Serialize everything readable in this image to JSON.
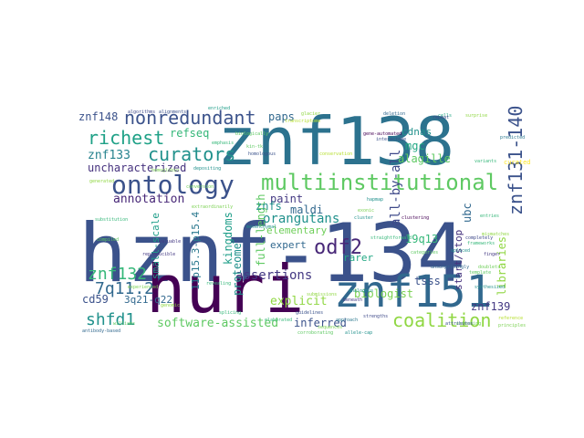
{
  "title": "",
  "words": [
    {
      "text": "hznf-134",
      "color": "#3b528b"
    },
    {
      "text": "znf138",
      "color": "#2c728e"
    },
    {
      "text": "huri",
      "color": "#440154"
    },
    {
      "text": "znf151",
      "color": "#31688e"
    },
    {
      "text": "ontology",
      "color": "#3b528b"
    },
    {
      "text": "multiinstitutional",
      "color": "#5ec962"
    },
    {
      "text": "znf131-140",
      "color": "#3b528b"
    },
    {
      "text": "nonredundant",
      "color": "#3b528b"
    },
    {
      "text": "curators",
      "color": "#21918c"
    },
    {
      "text": "richest",
      "color": "#1fa187"
    },
    {
      "text": "coalition",
      "color": "#90d743"
    },
    {
      "text": "znf132",
      "color": "#35b779"
    },
    {
      "text": "odf2",
      "color": "#482878"
    },
    {
      "text": "7q11.2",
      "color": "#31688e"
    },
    {
      "text": "shfd1",
      "color": "#21918c"
    },
    {
      "text": "software-assisted",
      "color": "#5ec962"
    },
    {
      "text": "assertions",
      "color": "#443983"
    },
    {
      "text": "orangutans",
      "color": "#21918c"
    },
    {
      "text": "annotation",
      "color": "#482878"
    },
    {
      "text": "uncharacterized",
      "color": "#46327e"
    },
    {
      "text": "znf133",
      "color": "#26828e"
    },
    {
      "text": "all-by-all",
      "color": "#3e4989"
    },
    {
      "text": "biologist",
      "color": "#7ad151"
    },
    {
      "text": "inferred",
      "color": "#3b528b"
    },
    {
      "text": "znf139",
      "color": "#443983"
    },
    {
      "text": "libraries",
      "color": "#90d743"
    },
    {
      "text": "explicit",
      "color": "#90d743"
    },
    {
      "text": "kingdoms",
      "color": "#1f9e89"
    },
    {
      "text": "full-length",
      "color": "#5ec962"
    },
    {
      "text": "proteome",
      "color": "#21918c"
    },
    {
      "text": "11p15.3-p15.4",
      "color": "#2a788e"
    },
    {
      "text": "start/stop",
      "color": "#46327e"
    },
    {
      "text": "curated",
      "color": "#fde725"
    },
    {
      "text": "paps",
      "color": "#31688e"
    },
    {
      "text": "refseq",
      "color": "#35b779"
    },
    {
      "text": "znf148",
      "color": "#3b528b"
    },
    {
      "text": "cdnas",
      "color": "#21918c"
    },
    {
      "text": "mgc",
      "color": "#22a884"
    },
    {
      "text": "alagille",
      "color": "#5ec962"
    },
    {
      "text": "paint",
      "color": "#443983"
    },
    {
      "text": "maldi",
      "color": "#31688e"
    },
    {
      "text": "znfs",
      "color": "#21918c"
    },
    {
      "text": "elementary",
      "color": "#6ece58"
    },
    {
      "text": "expert",
      "color": "#31688e"
    },
    {
      "text": "rarer",
      "color": "#22a884"
    },
    {
      "text": "tsss",
      "color": "#3b528b"
    },
    {
      "text": "19q13",
      "color": "#35b779"
    },
    {
      "text": "ubc",
      "color": "#31688e"
    },
    {
      "text": "cd59",
      "color": "#3b528b"
    },
    {
      "text": "3q21-q22",
      "color": "#31688e"
    },
    {
      "text": "small-scale",
      "color": "#1f9e89"
    },
    {
      "text": "transcriptome",
      "color": "#b5de2b"
    },
    {
      "text": "glacier",
      "color": "#90d743"
    },
    {
      "text": "emphasis",
      "color": "#35b779"
    },
    {
      "text": "biologically",
      "color": "#5ec962"
    },
    {
      "text": "hemoglobin",
      "color": "#7ad151"
    },
    {
      "text": "interactome",
      "color": "#3b528b"
    },
    {
      "text": "cells",
      "color": "#22a884"
    },
    {
      "text": "depositing",
      "color": "#21918c"
    },
    {
      "text": "conversion",
      "color": "#6ece58"
    },
    {
      "text": "variants",
      "color": "#35b779"
    },
    {
      "text": "predicted",
      "color": "#2a788e"
    },
    {
      "text": "extraordinarily",
      "color": "#7ad151"
    },
    {
      "text": "generated",
      "color": "#90d743"
    },
    {
      "text": "algorithms",
      "color": "#3e4989"
    },
    {
      "text": "enriched",
      "color": "#1f9e89"
    },
    {
      "text": "alignments",
      "color": "#3b528b"
    },
    {
      "text": "substitution",
      "color": "#35b779"
    },
    {
      "text": "valuable",
      "color": "#443983"
    },
    {
      "text": "kin-tk",
      "color": "#5ec962"
    },
    {
      "text": "cluster",
      "color": "#21918c"
    },
    {
      "text": "sequences",
      "color": "#7ad151"
    },
    {
      "text": "strengths",
      "color": "#3e4989"
    },
    {
      "text": "approach",
      "color": "#2a788e"
    },
    {
      "text": "clustering",
      "color": "#440154"
    },
    {
      "text": "genomic",
      "color": "#90d743"
    },
    {
      "text": "splicing",
      "color": "#35b779"
    },
    {
      "text": "guidelines",
      "color": "#3b528b"
    },
    {
      "text": "corroborating",
      "color": "#5ec962"
    },
    {
      "text": "allele-cap",
      "color": "#21918c"
    },
    {
      "text": "beneath",
      "color": "#443983"
    },
    {
      "text": "unsurprisingly",
      "color": "#31688e"
    },
    {
      "text": "extending",
      "color": "#6ece58"
    },
    {
      "text": "categories",
      "color": "#5ec962"
    },
    {
      "text": "straightforward",
      "color": "#35b779"
    },
    {
      "text": "surprise",
      "color": "#90d743"
    },
    {
      "text": "principles",
      "color": "#7ad151"
    },
    {
      "text": "reference",
      "color": "#b5de2b"
    },
    {
      "text": "attributes",
      "color": "#3b528b"
    },
    {
      "text": "synthesized",
      "color": "#21918c"
    },
    {
      "text": "finger",
      "color": "#443983"
    },
    {
      "text": "template",
      "color": "#5ec962"
    },
    {
      "text": "frameworks",
      "color": "#35b779"
    },
    {
      "text": "mismatches",
      "color": "#90d743"
    },
    {
      "text": "completely",
      "color": "#3e4989"
    },
    {
      "text": "doublets",
      "color": "#6ece58"
    },
    {
      "text": "spliced",
      "color": "#21918c"
    },
    {
      "text": "entries",
      "color": "#35b779"
    },
    {
      "text": "gene-automated",
      "color": "#440154"
    },
    {
      "text": "antibody-based",
      "color": "#31688e"
    },
    {
      "text": "williams",
      "color": "#5ec962"
    },
    {
      "text": "experienced",
      "color": "#7ad151"
    },
    {
      "text": "revealing",
      "color": "#35b779"
    },
    {
      "text": "mesenchymal",
      "color": "#21918c"
    },
    {
      "text": "submissions",
      "color": "#90d743"
    },
    {
      "text": "homologous",
      "color": "#3b528b"
    },
    {
      "text": "reproducible",
      "color": "#443983"
    },
    {
      "text": "compiled",
      "color": "#5ec962"
    },
    {
      "text": "elaborated",
      "color": "#35b779"
    },
    {
      "text": "analogous",
      "color": "#21918c"
    },
    {
      "text": "conservation",
      "color": "#b5de2b"
    },
    {
      "text": "deletion",
      "color": "#31688e"
    },
    {
      "text": "repeat",
      "color": "#3e4989"
    },
    {
      "text": "hapmap",
      "color": "#21918c"
    },
    {
      "text": "exonic",
      "color": "#7ad151"
    }
  ]
}
